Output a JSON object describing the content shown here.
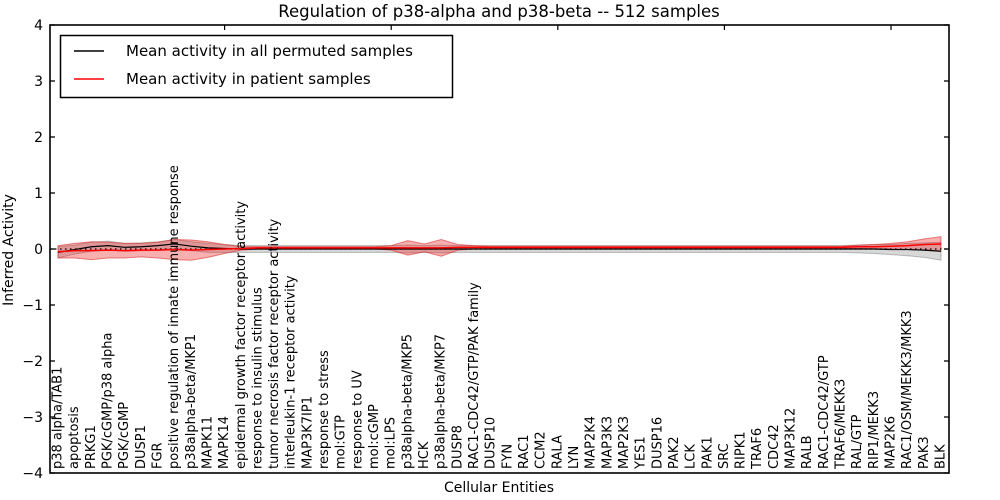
{
  "title": "Regulation of p38-alpha and p38-beta -- 512 samples",
  "chart_data": {
    "type": "line",
    "title": "Regulation of p38-alpha and p38-beta -- 512 samples",
    "xlabel": "Cellular Entities",
    "ylabel": "Inferred Activity",
    "ylim": [
      -4,
      4
    ],
    "yticks": [
      -4,
      -3,
      -2,
      -1,
      0,
      1,
      2,
      3,
      4
    ],
    "grid": false,
    "legend_position": "upper left",
    "zero_line": true,
    "categories": [
      "p38 alpha/TAB1",
      "apoptosis",
      "PRKG1",
      "PGK/cGMP/p38 alpha",
      "PGK/cGMP",
      "DUSP1",
      "FGR",
      "positive regulation of innate immune response",
      "p38alpha-beta/MKP1",
      "MAPK11",
      "MAPK14",
      "epidermal growth factor receptor activity",
      "response to insulin stimulus",
      "tumor necrosis factor receptor activity",
      "interleukin-1 receptor activity",
      "MAP3K7IP1",
      "response to stress",
      "mol:GTP",
      "response to UV",
      "mol:cGMP",
      "mol:LPS",
      "p38alpha-beta/MKP5",
      "HCK",
      "p38alpha-beta/MKP7",
      "DUSP8",
      "RAC1-CDC42/GTP/PAK family",
      "DUSP10",
      "FYN",
      "RAC1",
      "CCM2",
      "RALA",
      "LYN",
      "MAP2K4",
      "MAP3K3",
      "MAP2K3",
      "YES1",
      "DUSP16",
      "PAK2",
      "LCK",
      "PAK1",
      "SRC",
      "RIPK1",
      "TRAF6",
      "CDC42",
      "MAP3K12",
      "RALB",
      "RAC1-CDC42/GTP",
      "TRAF6/MEKK3",
      "RAL/GTP",
      "RIP1/MEKK3",
      "MAP2K6",
      "RAC1/OSM/MEKK3/MKK3",
      "PAK3",
      "BLK"
    ],
    "series": [
      {
        "name": "Mean activity in all permuted samples",
        "color": "#000000",
        "band_fill": "rgba(125,125,125,0.30)",
        "band_edge": "rgba(110,110,110,0.45)",
        "values": [
          -0.06,
          -0.01,
          0.04,
          0.06,
          0.03,
          0.04,
          0.06,
          0.09,
          0.05,
          0.02,
          0.01,
          0,
          0,
          0,
          0,
          0,
          0,
          0,
          0,
          0,
          0,
          0,
          0,
          0,
          0,
          0,
          0,
          0,
          0,
          0,
          0,
          0,
          0,
          0,
          0,
          0,
          0,
          0,
          0,
          0,
          0,
          0,
          0,
          0,
          0,
          0,
          0,
          0,
          0,
          0,
          -0.01,
          -0.01,
          -0.02,
          -0.04
        ],
        "band": [
          0.1,
          0.08,
          0.08,
          0.08,
          0.07,
          0.07,
          0.07,
          0.08,
          0.08,
          0.08,
          0.07,
          0.06,
          0.06,
          0.06,
          0.06,
          0.06,
          0.06,
          0.06,
          0.06,
          0.06,
          0.06,
          0.07,
          0.06,
          0.07,
          0.06,
          0.06,
          0.06,
          0.06,
          0.06,
          0.06,
          0.06,
          0.06,
          0.06,
          0.06,
          0.06,
          0.06,
          0.06,
          0.06,
          0.06,
          0.06,
          0.06,
          0.06,
          0.06,
          0.06,
          0.06,
          0.06,
          0.06,
          0.06,
          0.07,
          0.08,
          0.09,
          0.11,
          0.13,
          0.16
        ]
      },
      {
        "name": "Mean activity in patient samples",
        "color": "#ff0000",
        "band_fill": "rgba(235,45,45,0.38)",
        "band_edge": "rgba(215,35,35,0.55)",
        "values": [
          -0.05,
          -0.03,
          -0.03,
          -0.02,
          -0.03,
          -0.02,
          -0.02,
          -0.01,
          -0.02,
          -0.01,
          0,
          0.01,
          0.02,
          0.02,
          0.02,
          0.02,
          0.02,
          0.02,
          0.02,
          0.02,
          0.02,
          0.02,
          0.02,
          0.02,
          0.03,
          0.03,
          0.03,
          0.03,
          0.03,
          0.03,
          0.03,
          0.03,
          0.03,
          0.03,
          0.03,
          0.03,
          0.03,
          0.03,
          0.03,
          0.03,
          0.03,
          0.03,
          0.03,
          0.03,
          0.03,
          0.03,
          0.03,
          0.03,
          0.04,
          0.04,
          0.05,
          0.06,
          0.08,
          0.09
        ],
        "band": [
          0.11,
          0.13,
          0.16,
          0.14,
          0.13,
          0.12,
          0.14,
          0.18,
          0.18,
          0.14,
          0.08,
          0.03,
          0.02,
          0.02,
          0.02,
          0.02,
          0.02,
          0.02,
          0.02,
          0.02,
          0.04,
          0.13,
          0.07,
          0.15,
          0.05,
          0.03,
          0.02,
          0.02,
          0.02,
          0.02,
          0.02,
          0.02,
          0.02,
          0.02,
          0.02,
          0.02,
          0.02,
          0.02,
          0.02,
          0.02,
          0.02,
          0.02,
          0.02,
          0.02,
          0.02,
          0.02,
          0.02,
          0.02,
          0.03,
          0.04,
          0.05,
          0.07,
          0.1,
          0.13
        ]
      }
    ]
  },
  "legend": {
    "entries": [
      {
        "label": "Mean activity in all permuted samples",
        "color": "#000000"
      },
      {
        "label": "Mean activity in patient samples",
        "color": "#ff0000"
      }
    ]
  }
}
